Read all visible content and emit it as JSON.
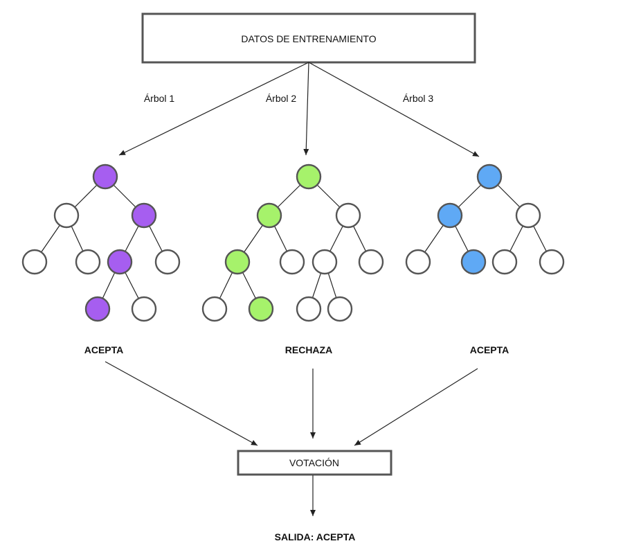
{
  "training_data_label": "DATOS DE ENTRENAMIENTO",
  "voting_label": "VOTACIÓN",
  "output_label": "SALIDA: ACEPTA",
  "trees": [
    {
      "label": "Árbol 1",
      "result": "ACEPTA",
      "highlight_color": "#a65ef0"
    },
    {
      "label": "Árbol 2",
      "result": "RECHAZA",
      "highlight_color": "#a6f26b"
    },
    {
      "label": "Árbol 3",
      "result": "ACEPTA",
      "highlight_color": "#5fa9f5"
    }
  ],
  "colors": {
    "node_default": "#ffffff",
    "outline": "#555555",
    "line": "#222222"
  }
}
